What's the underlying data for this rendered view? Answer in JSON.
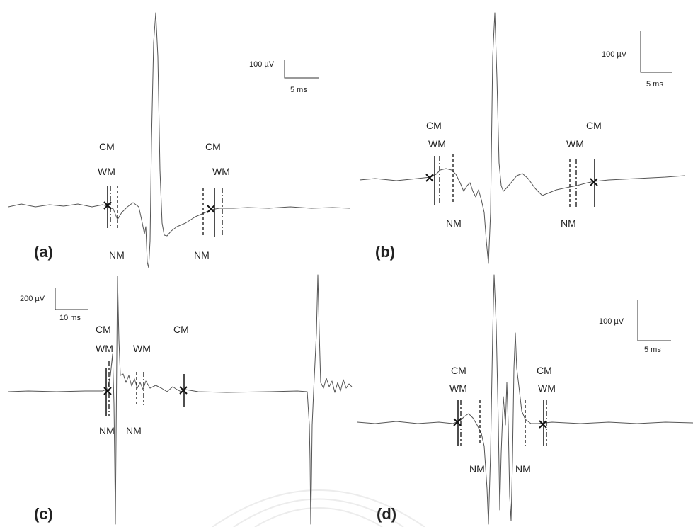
{
  "figure": {
    "panels": [
      {
        "label": "(a)",
        "scale": {
          "amplitude": "100 µV",
          "time": "5 ms"
        },
        "markers": [
          {
            "text": "CM"
          },
          {
            "text": "WM"
          },
          {
            "text": "NM"
          },
          {
            "text": "CM"
          },
          {
            "text": "WM"
          },
          {
            "text": "NM"
          }
        ]
      },
      {
        "label": "(b)",
        "scale": {
          "amplitude": "100 µV",
          "time": "5 ms"
        },
        "markers": [
          {
            "text": "CM"
          },
          {
            "text": "WM"
          },
          {
            "text": "NM"
          },
          {
            "text": "CM"
          },
          {
            "text": "WM"
          },
          {
            "text": "NM"
          }
        ]
      },
      {
        "label": "(c)",
        "scale": {
          "amplitude": "200 µV",
          "time": "10 ms"
        },
        "markers": [
          {
            "text": "CM"
          },
          {
            "text": "WM"
          },
          {
            "text": "NM"
          },
          {
            "text": "WM"
          },
          {
            "text": "NM"
          },
          {
            "text": "CM"
          }
        ]
      },
      {
        "label": "(d)",
        "scale": {
          "amplitude": "100 µV",
          "time": "5 ms"
        },
        "markers": [
          {
            "text": "CM"
          },
          {
            "text": "WM"
          },
          {
            "text": "NM"
          },
          {
            "text": "CM"
          },
          {
            "text": "WM"
          },
          {
            "text": "NM"
          }
        ]
      }
    ],
    "colors": {
      "trace": "#555555",
      "marker": "#222222",
      "background": "#ffffff"
    }
  }
}
